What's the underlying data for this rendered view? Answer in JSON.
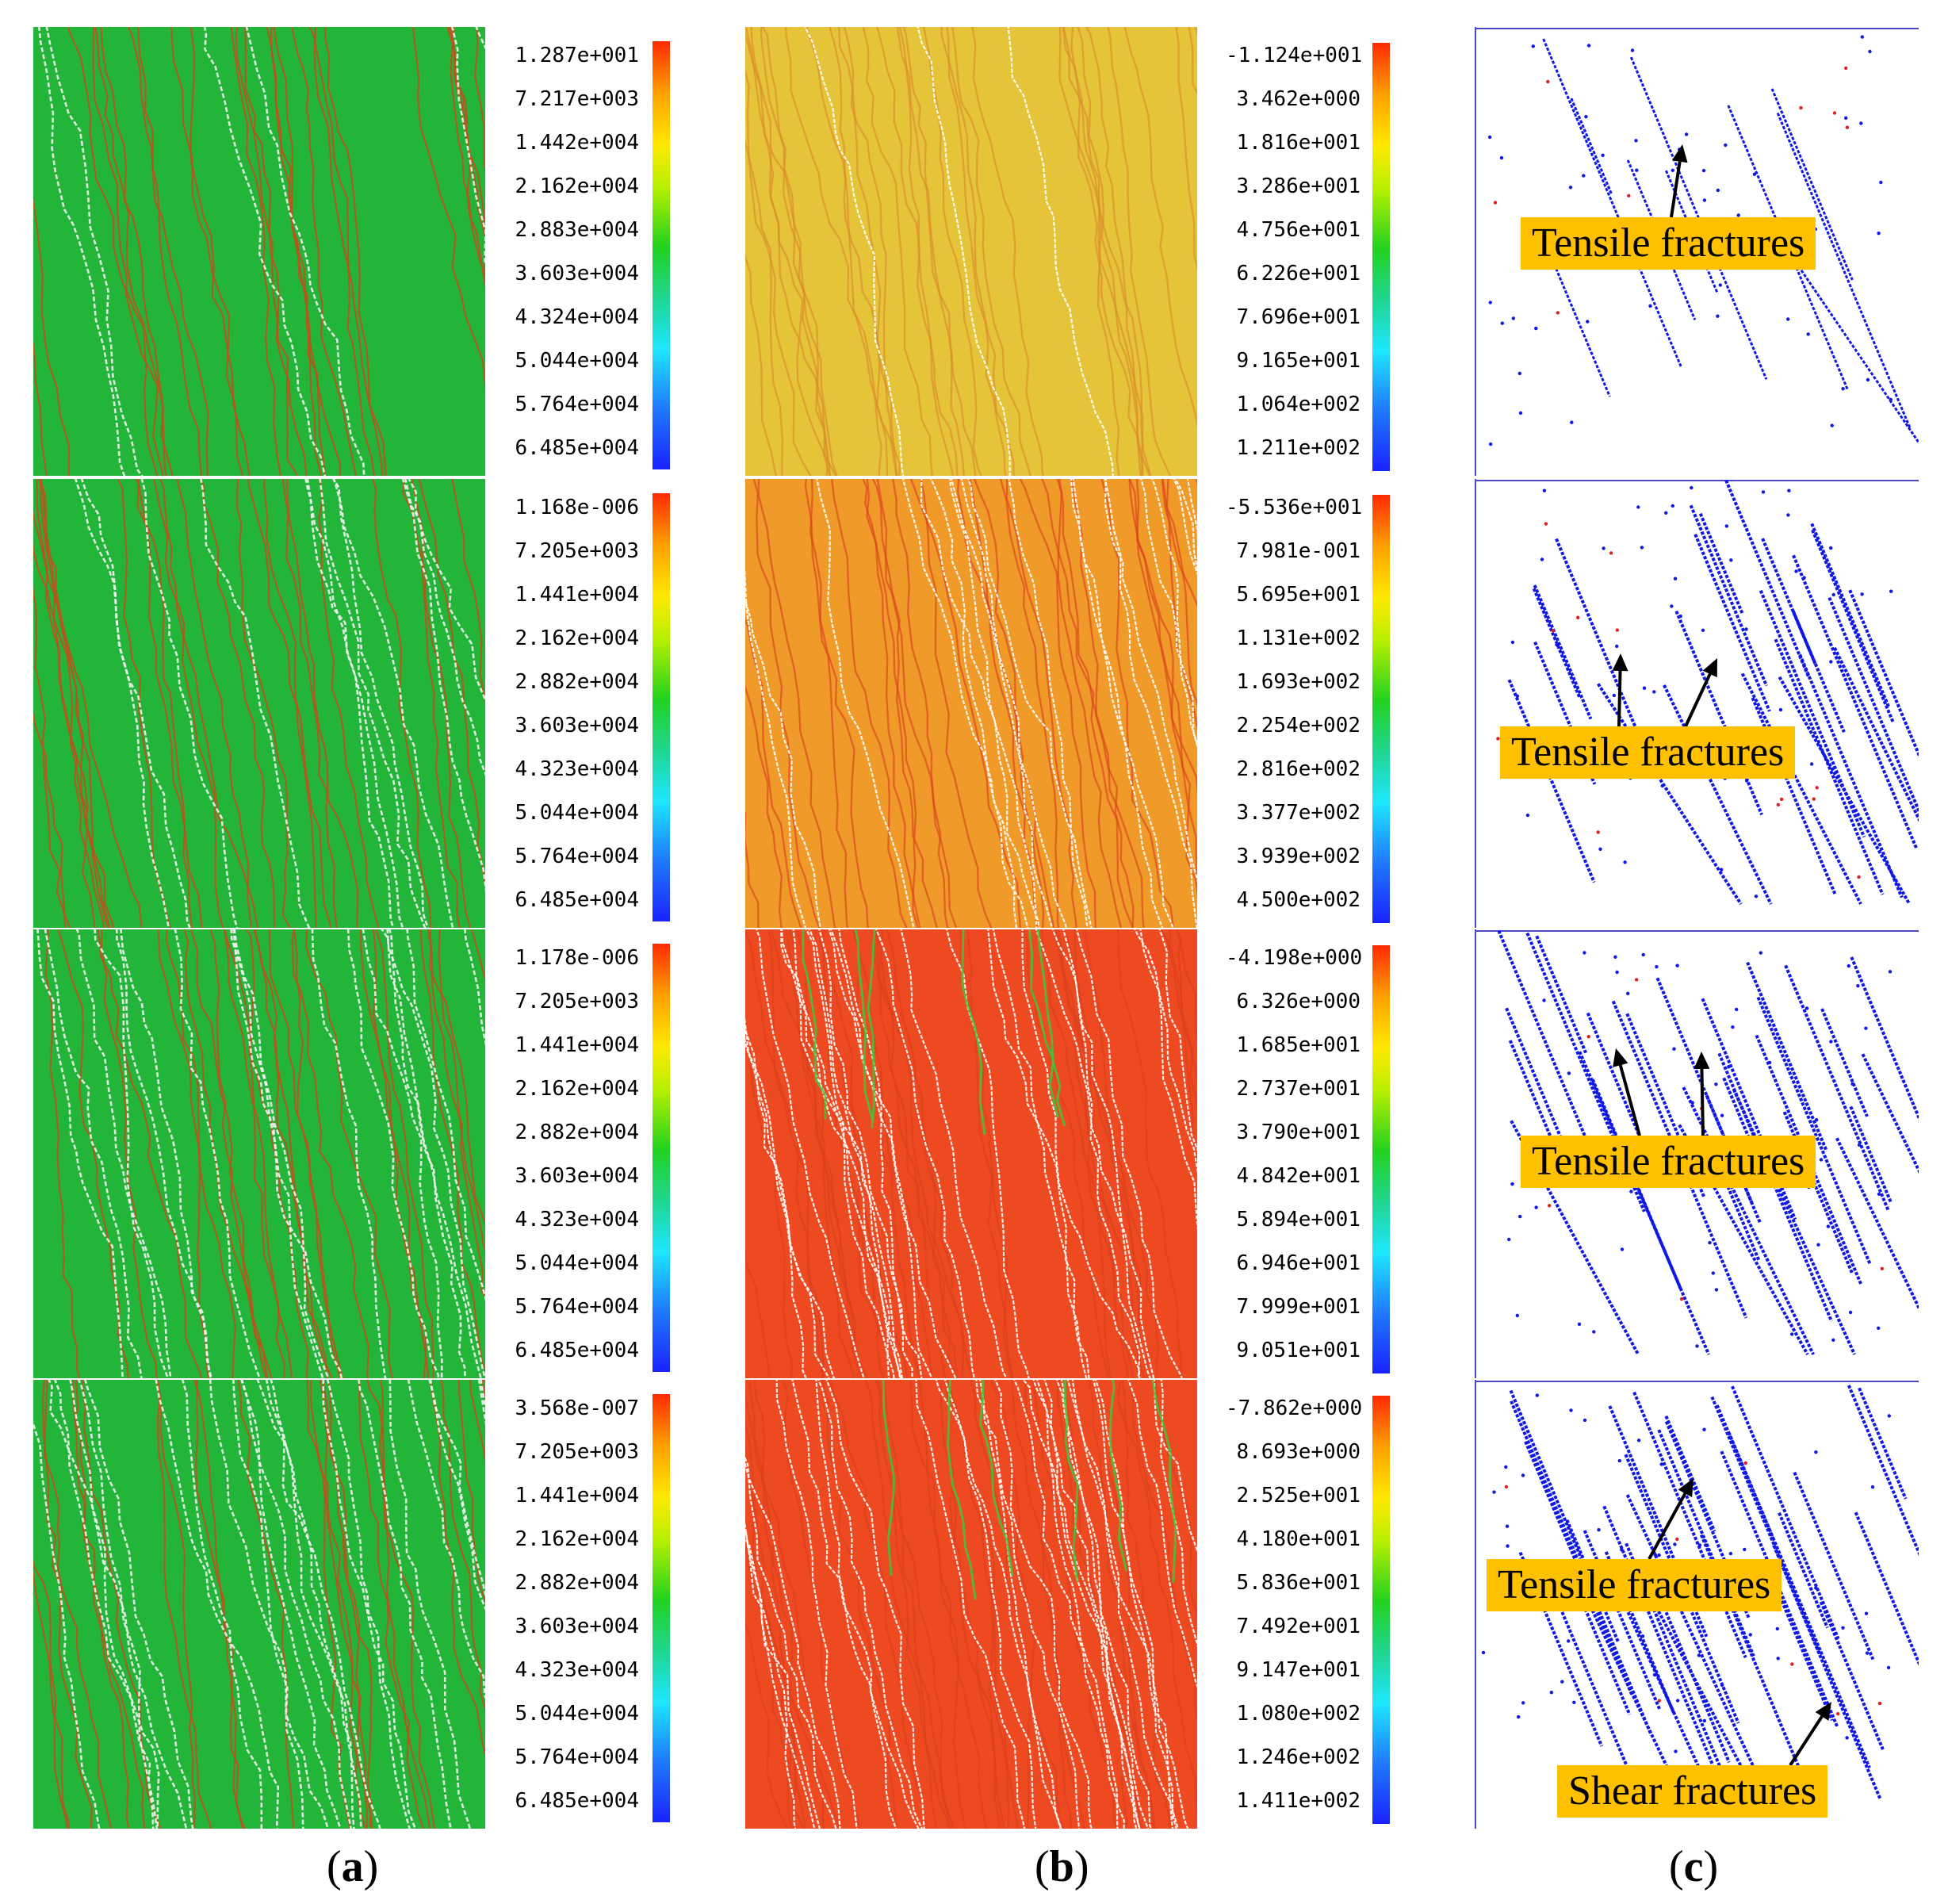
{
  "captions": {
    "a": "a",
    "b": "b",
    "c": "c"
  },
  "colors": {
    "green_field": "#23b43a",
    "orange_field": "#f09a2a",
    "red_field": "#ee4a22",
    "yellow_field": "#e6c43a",
    "fracture_blue": "#1018e6",
    "callout_bg": "#ffc000"
  },
  "rows": [
    {
      "col_a_ticks": [
        "1.287e+001",
        "7.217e+003",
        "1.442e+004",
        "2.162e+004",
        "2.883e+004",
        "3.603e+004",
        "4.324e+004",
        "5.044e+004",
        "5.764e+004",
        "6.485e+004"
      ],
      "col_b_ticks": [
        "-1.124e+001",
        "3.462e+000",
        "1.816e+001",
        "3.286e+001",
        "4.756e+001",
        "6.226e+001",
        "7.696e+001",
        "9.165e+001",
        "1.064e+002",
        "1.211e+002"
      ],
      "callouts": [
        "Tensile fractures"
      ]
    },
    {
      "col_a_ticks": [
        "1.168e-006",
        "7.205e+003",
        "1.441e+004",
        "2.162e+004",
        "2.882e+004",
        "3.603e+004",
        "4.323e+004",
        "5.044e+004",
        "5.764e+004",
        "6.485e+004"
      ],
      "col_b_ticks": [
        "-5.536e+001",
        "7.981e-001",
        "5.695e+001",
        "1.131e+002",
        "1.693e+002",
        "2.254e+002",
        "2.816e+002",
        "3.377e+002",
        "3.939e+002",
        "4.500e+002"
      ],
      "callouts": [
        "Tensile fractures"
      ]
    },
    {
      "col_a_ticks": [
        "1.178e-006",
        "7.205e+003",
        "1.441e+004",
        "2.162e+004",
        "2.882e+004",
        "3.603e+004",
        "4.323e+004",
        "5.044e+004",
        "5.764e+004",
        "6.485e+004"
      ],
      "col_b_ticks": [
        "-4.198e+000",
        "6.326e+000",
        "1.685e+001",
        "2.737e+001",
        "3.790e+001",
        "4.842e+001",
        "5.894e+001",
        "6.946e+001",
        "7.999e+001",
        "9.051e+001"
      ],
      "callouts": [
        "Tensile fractures"
      ]
    },
    {
      "col_a_ticks": [
        "3.568e-007",
        "7.205e+003",
        "1.441e+004",
        "2.162e+004",
        "2.882e+004",
        "3.603e+004",
        "4.323e+004",
        "5.044e+004",
        "5.764e+004",
        "6.485e+004"
      ],
      "col_b_ticks": [
        "-7.862e+000",
        "8.693e+000",
        "2.525e+001",
        "4.180e+001",
        "5.836e+001",
        "7.492e+001",
        "9.147e+001",
        "1.080e+002",
        "1.246e+002",
        "1.411e+002"
      ],
      "callouts": [
        "Tensile fractures",
        "Shear fractures"
      ]
    }
  ]
}
